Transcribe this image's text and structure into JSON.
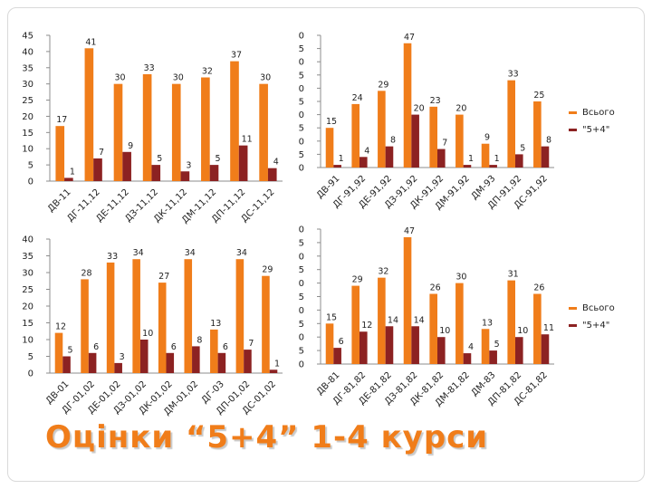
{
  "title": "Оцінки “5+4” 1-4 курси",
  "colors": {
    "total": "#f07d1a",
    "good": "#8c2222",
    "axis": "#8c8c8c"
  },
  "charts": [
    {
      "id": "c1",
      "categories": [
        "ДВ-11",
        "ДГ-11,12",
        "ДЕ-11,12",
        "ДЗ-11,12",
        "ДК-11,12",
        "ДМ-11,12",
        "ДП-11,12",
        "ДС-11,12"
      ],
      "ylim": [
        0,
        45
      ],
      "ystep": 5
    },
    {
      "id": "c2",
      "categories": [
        "ДВ-91",
        "ДГ-91,92",
        "ДЕ-91,92",
        "ДЗ-91,92",
        "ДК-91,92",
        "ДМ-91,92",
        "ДМ-93",
        "ДП-91,92",
        "ДС-91,92"
      ],
      "ylim": [
        0,
        50
      ],
      "ystep": 5
    },
    {
      "id": "c3",
      "categories": [
        "ДВ-01",
        "ДГ-01,02",
        "ДЕ-01,02",
        "ДЗ-01,02",
        "ДК-01,02",
        "ДМ-01,02",
        "ДГ-03",
        "ДП-01,02",
        "ДС-01,02"
      ],
      "ylim": [
        0,
        40
      ],
      "ystep": 5
    },
    {
      "id": "c4",
      "categories": [
        "ДВ-81",
        "ДГ-81,82",
        "ДЕ-81,82",
        "ДЗ-81,82",
        "ДК-81,82",
        "ДМ-81,82",
        "ДМ-83",
        "ДП-81,82",
        "ДС-81,82"
      ],
      "ylim": [
        0,
        50
      ],
      "ystep": 5
    }
  ],
  "legend": {
    "total": "Всього",
    "good": "\"5+4\""
  },
  "chart_data": [
    {
      "type": "bar",
      "categories": [
        "ДВ-11",
        "ДГ-11,12",
        "ДЕ-11,12",
        "ДЗ-11,12",
        "ДК-11,12",
        "ДМ-11,12",
        "ДП-11,12",
        "ДС-11,12"
      ],
      "series": [
        {
          "values": [
            17,
            41,
            30,
            33,
            30,
            32,
            37,
            30
          ]
        },
        {
          "values": [
            1,
            7,
            9,
            5,
            3,
            5,
            11,
            4
          ]
        }
      ],
      "ylim": [
        0,
        45
      ],
      "grid": false
    },
    {
      "type": "bar",
      "categories": [
        "ДВ-91",
        "ДГ-91,92",
        "ДЕ-91,92",
        "ДЗ-91,92",
        "ДК-91,92",
        "ДМ-91,92",
        "ДМ-93",
        "ДП-91,92",
        "ДС-91,92"
      ],
      "series": [
        {
          "name": "Всього",
          "values": [
            15,
            24,
            29,
            47,
            23,
            20,
            9,
            33,
            25
          ]
        },
        {
          "name": "\"5+4\"",
          "values": [
            1,
            4,
            8,
            20,
            7,
            1,
            1,
            5,
            8
          ]
        }
      ],
      "ylim": [
        0,
        50
      ],
      "grid": false,
      "legend": "right"
    },
    {
      "type": "bar",
      "categories": [
        "ДВ-01",
        "ДГ-01,02",
        "ДЕ-01,02",
        "ДЗ-01,02",
        "ДК-01,02",
        "ДМ-01,02",
        "ДГ-03",
        "ДП-01,02",
        "ДС-01,02"
      ],
      "series": [
        {
          "values": [
            12,
            28,
            33,
            34,
            27,
            34,
            13,
            34,
            29
          ]
        },
        {
          "values": [
            5,
            6,
            3,
            10,
            6,
            8,
            6,
            7,
            1
          ]
        }
      ],
      "ylim": [
        0,
        40
      ],
      "grid": false
    },
    {
      "type": "bar",
      "categories": [
        "ДВ-81",
        "ДГ-81,82",
        "ДЕ-81,82",
        "ДЗ-81,82",
        "ДК-81,82",
        "ДМ-81,82",
        "ДМ-83",
        "ДП-81,82",
        "ДС-81,82"
      ],
      "series": [
        {
          "name": "Всього",
          "values": [
            15,
            29,
            32,
            47,
            26,
            30,
            13,
            31,
            26
          ]
        },
        {
          "name": "\"5+4\"",
          "values": [
            6,
            12,
            14,
            14,
            10,
            4,
            5,
            10,
            11
          ]
        }
      ],
      "ylim": [
        0,
        50
      ],
      "grid": false,
      "legend": "right"
    }
  ]
}
